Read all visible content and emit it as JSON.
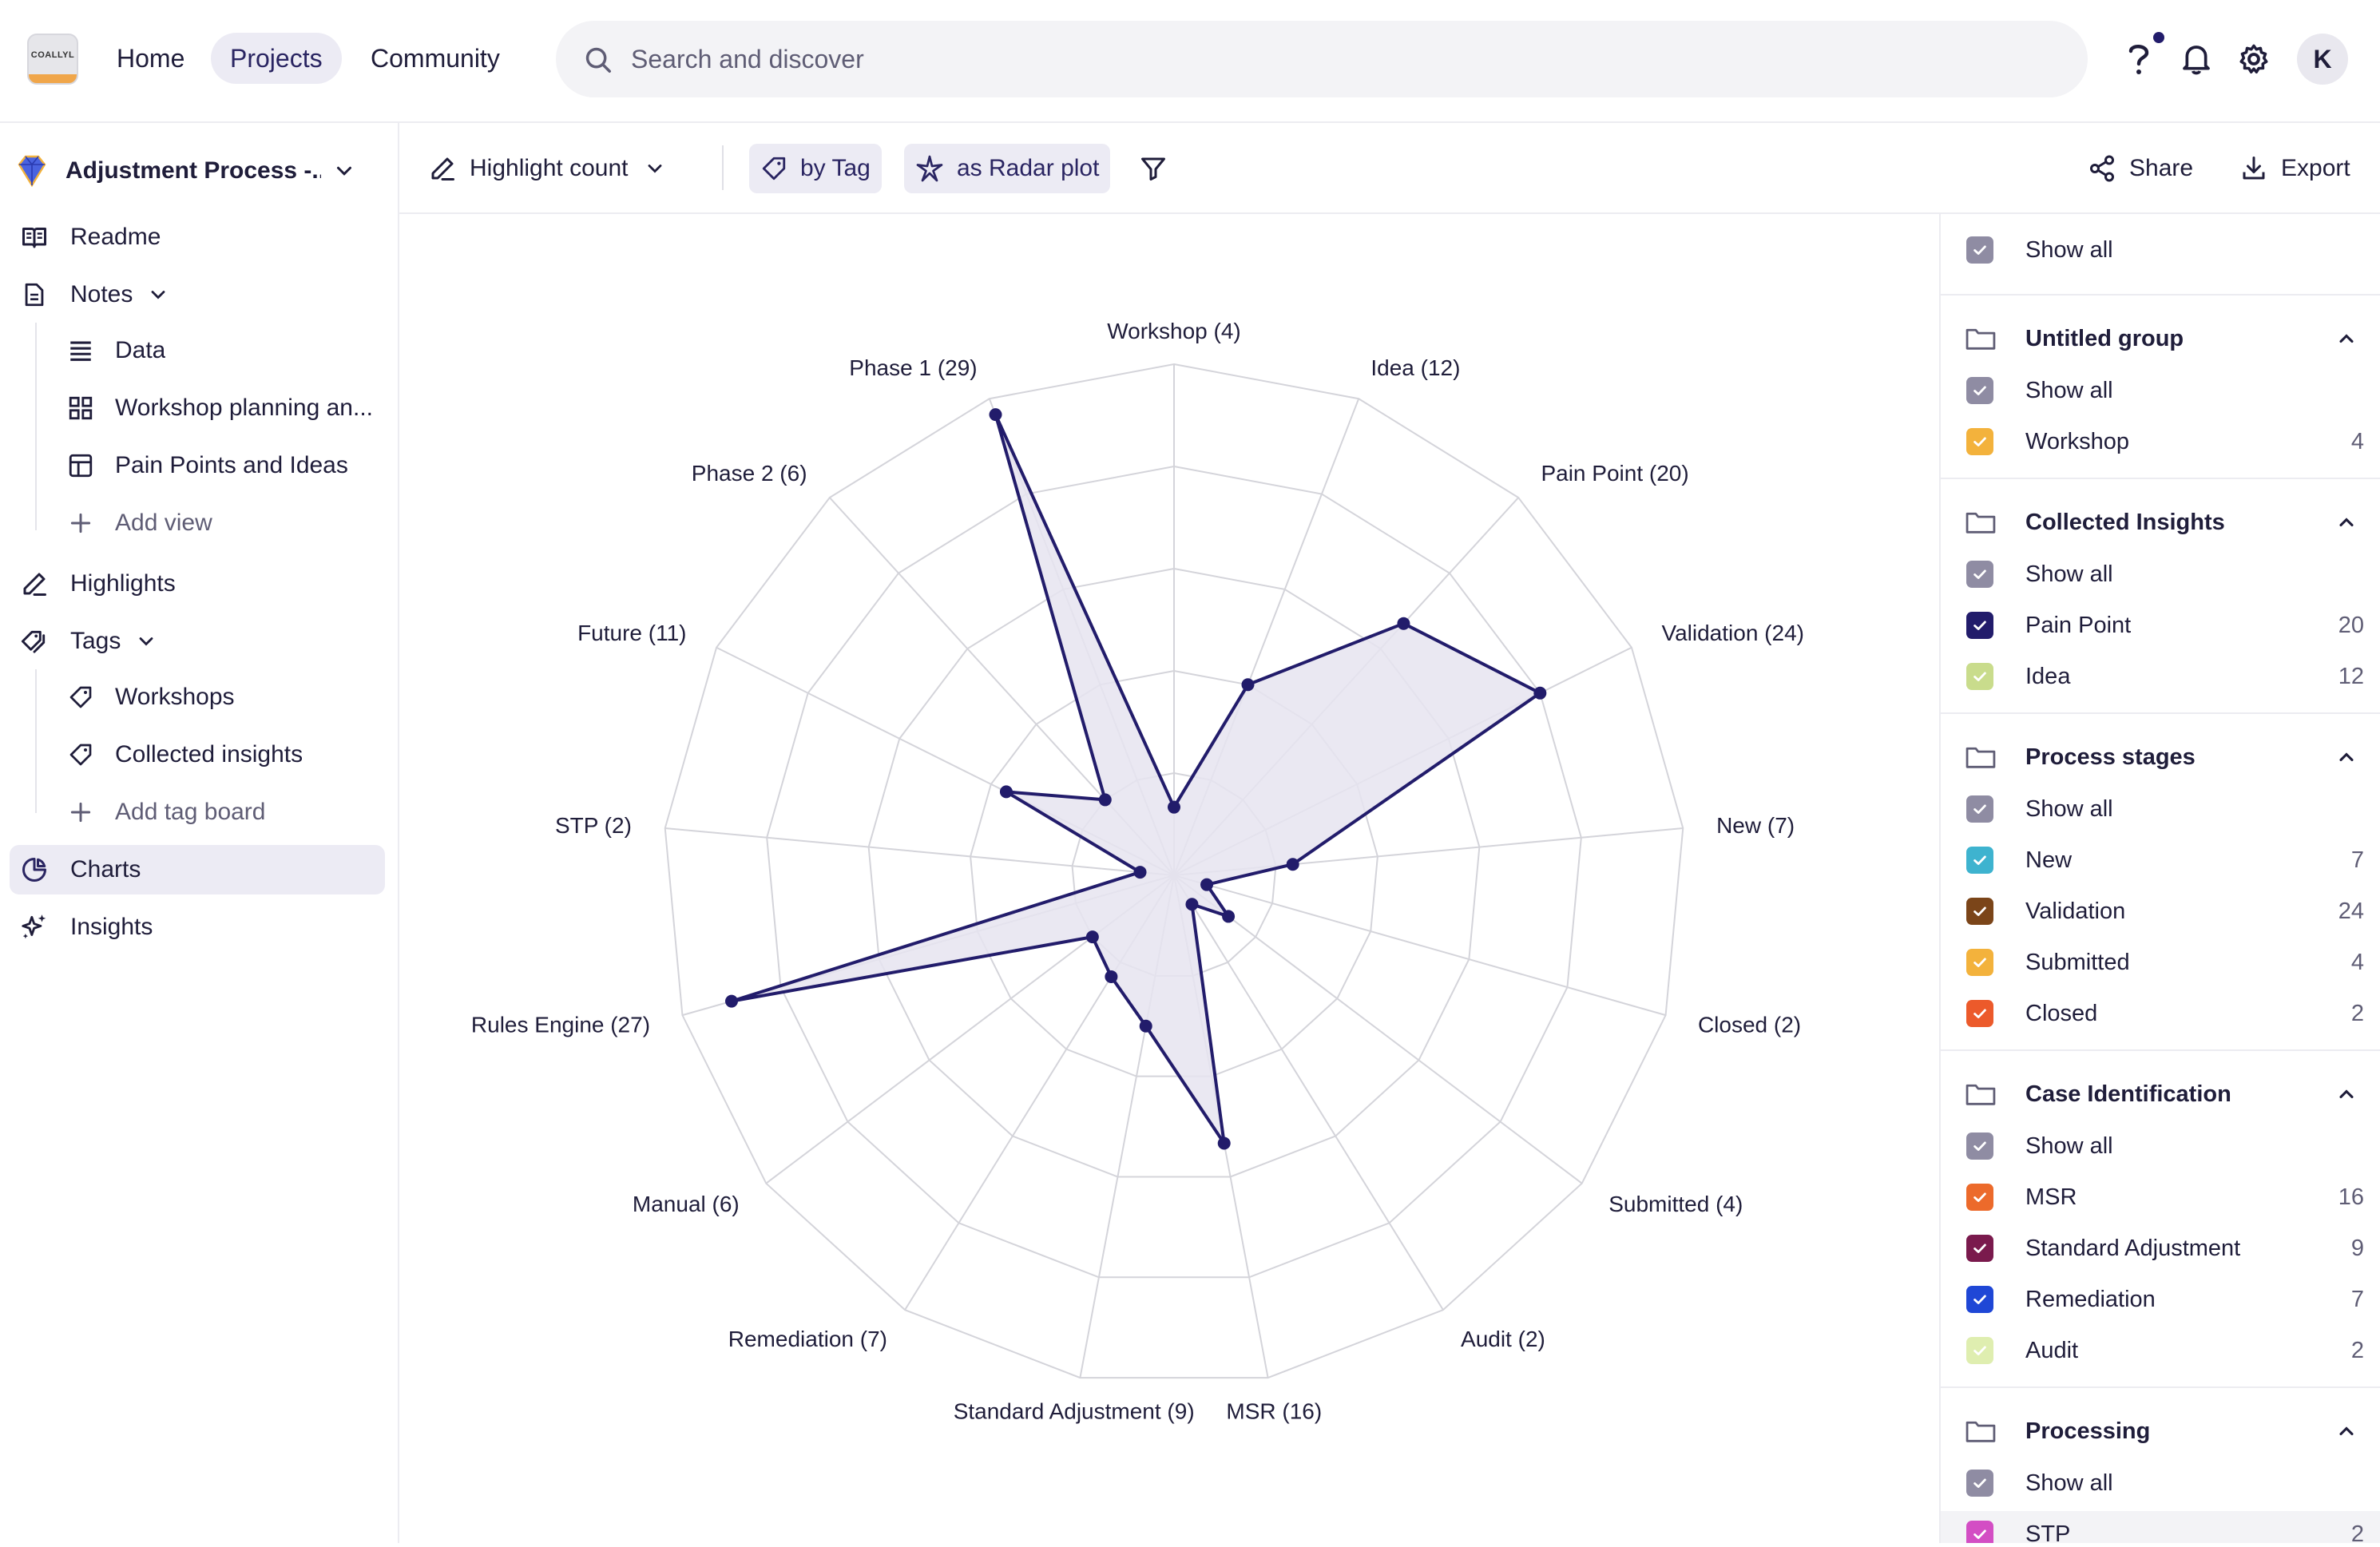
{
  "topbar": {
    "logo_text": "COALLYL",
    "nav": [
      {
        "label": "Home"
      },
      {
        "label": "Projects"
      },
      {
        "label": "Community"
      }
    ],
    "search_placeholder": "Search and discover",
    "avatar_initial": "K"
  },
  "sidebar": {
    "project_name": "Adjustment Process -...",
    "readme": "Readme",
    "notes": "Notes",
    "notes_children": [
      "Data",
      "Workshop planning an...",
      "Pain Points and Ideas",
      "Add view"
    ],
    "highlights": "Highlights",
    "tags": "Tags",
    "tags_children": [
      "Workshops",
      "Collected insights",
      "Add tag board"
    ],
    "charts": "Charts",
    "insights": "Insights"
  },
  "toolbar": {
    "measure": "Highlight count",
    "group_by": "by Tag",
    "chart_type": "as Radar plot",
    "share": "Share",
    "export": "Export"
  },
  "chart_data": {
    "type": "radar",
    "title": "",
    "max": 30,
    "rings": 5,
    "categories": [
      "Workshop (4)",
      "Idea (12)",
      "Pain Point (20)",
      "Validation (24)",
      "New (7)",
      "Closed (2)",
      "Submitted (4)",
      "Audit (2)",
      "MSR (16)",
      "Standard Adjustment (9)",
      "Remediation (7)",
      "Manual (6)",
      "Rules Engine (27)",
      "STP (2)",
      "Future (11)",
      "Phase 2 (6)",
      "Phase 1 (29)"
    ],
    "values": [
      4,
      12,
      20,
      24,
      7,
      2,
      4,
      2,
      16,
      9,
      7,
      6,
      27,
      2,
      11,
      6,
      29
    ],
    "series_color": "#221c6b",
    "fill_color": "#e6e4f0",
    "grid_color": "#d4d4da"
  },
  "filters": {
    "show_all_top": "Show all",
    "groups": [
      {
        "name": "Untitled group",
        "show_all": "Show all",
        "items": [
          {
            "label": "Workshop",
            "count": "4",
            "color": "#f3b23c"
          }
        ]
      },
      {
        "name": "Collected Insights",
        "show_all": "Show all",
        "items": [
          {
            "label": "Pain Point",
            "count": "20",
            "color": "#221c6b"
          },
          {
            "label": "Idea",
            "count": "12",
            "color": "#c9dc8c"
          }
        ]
      },
      {
        "name": "Process stages",
        "show_all": "Show all",
        "items": [
          {
            "label": "New",
            "count": "7",
            "color": "#3eb3cf"
          },
          {
            "label": "Validation",
            "count": "24",
            "color": "#7b4519"
          },
          {
            "label": "Submitted",
            "count": "4",
            "color": "#f3b23c"
          },
          {
            "label": "Closed",
            "count": "2",
            "color": "#ec5a2b"
          }
        ]
      },
      {
        "name": "Case Identification",
        "show_all": "Show all",
        "items": [
          {
            "label": "MSR",
            "count": "16",
            "color": "#ec6a2b"
          },
          {
            "label": "Standard Adjustment",
            "count": "9",
            "color": "#7a1a4d"
          },
          {
            "label": "Remediation",
            "count": "7",
            "color": "#1f47d6"
          },
          {
            "label": "Audit",
            "count": "2",
            "color": "#dfeeb0"
          }
        ]
      },
      {
        "name": "Processing",
        "show_all": "Show all",
        "items": [
          {
            "label": "STP",
            "count": "2",
            "color": "#d34ec4"
          }
        ]
      }
    ]
  }
}
